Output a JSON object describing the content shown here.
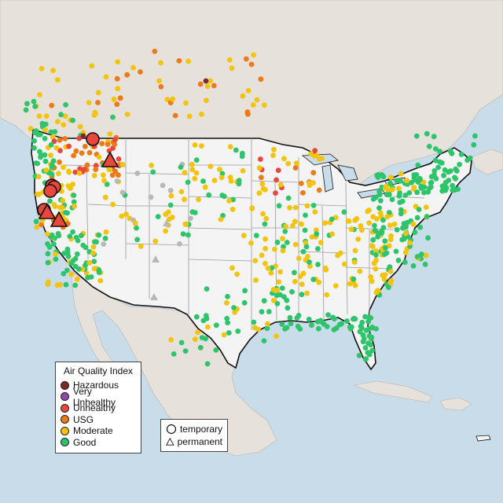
{
  "legend": {
    "title": "Air Quality Index",
    "items": [
      {
        "label": "Hazardous",
        "color": "#7e2a26"
      },
      {
        "label": "Very Unhealthy",
        "color": "#8e4aa8"
      },
      {
        "label": "Unhealthy",
        "color": "#e8473d"
      },
      {
        "label": "USG",
        "color": "#ec7a16"
      },
      {
        "label": "Moderate",
        "color": "#f2c40f"
      },
      {
        "label": "Good",
        "color": "#2ec46b"
      }
    ]
  },
  "shape_legend": {
    "items": [
      {
        "label": "temporary",
        "icon": "circle-icon"
      },
      {
        "label": "permanent",
        "icon": "triangle-icon"
      }
    ]
  },
  "colors": {
    "water": "#c9dcea",
    "us_land": "#f4f4f4",
    "other_land": "#e6e1da",
    "border": "#111111",
    "state_line": "#9a9a9a",
    "unknown": "#b8b8b8"
  }
}
